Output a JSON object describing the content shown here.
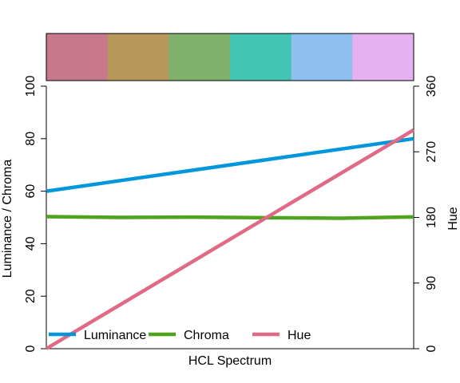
{
  "chart_data": {
    "type": "line",
    "title": "",
    "xlabel": "HCL Spectrum",
    "ylabel": "Luminance / Chroma",
    "ylabel_right": "Hue",
    "ylim": [
      0,
      100
    ],
    "ylim_right": [
      0,
      360
    ],
    "yticks": [
      0,
      20,
      40,
      60,
      80,
      100
    ],
    "yticks_right": [
      0,
      90,
      180,
      270,
      360
    ],
    "grid": false,
    "legend_position": "bottom-left",
    "swatches": [
      "#C7798B",
      "#B7975A",
      "#80B26D",
      "#42C5B5",
      "#8DBFEF",
      "#E6B1F1"
    ],
    "x": [
      0,
      0.2,
      0.4,
      0.6,
      0.8,
      1.0
    ],
    "series": [
      {
        "name": "Luminance",
        "axis": "left",
        "color": "#0096DB",
        "values": [
          60,
          64,
          68,
          72,
          76,
          80
        ]
      },
      {
        "name": "Chroma",
        "axis": "left",
        "color": "#4FA31F",
        "values": [
          50.3,
          50.0,
          50.1,
          49.9,
          49.7,
          50.2
        ]
      },
      {
        "name": "Hue",
        "axis": "right",
        "color": "#E06A85",
        "values": [
          0,
          60,
          120,
          180,
          240,
          300
        ]
      }
    ]
  }
}
